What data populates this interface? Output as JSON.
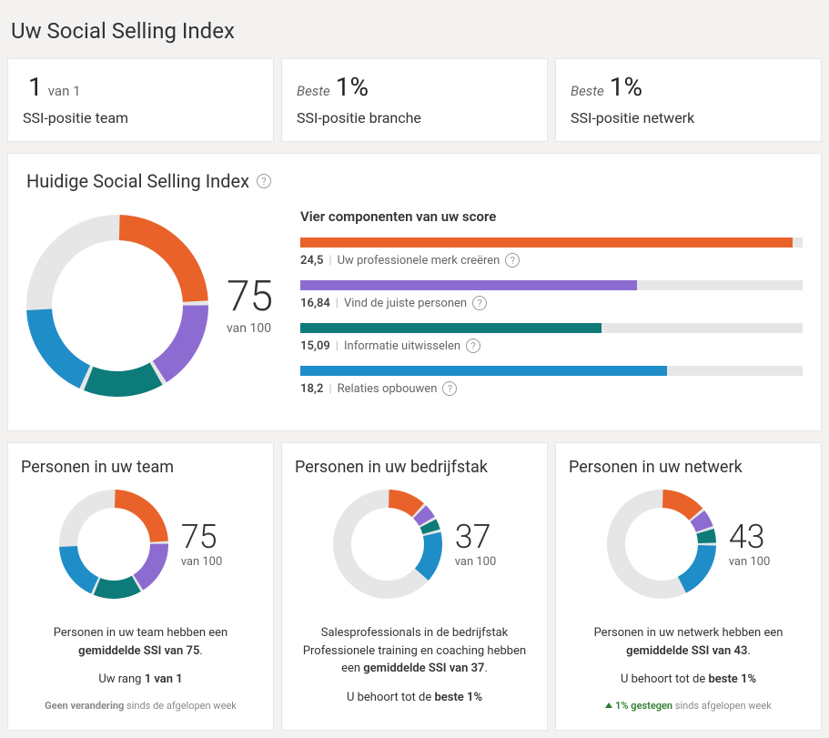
{
  "colors": {
    "orange": "#e9622a",
    "purple": "#8d6cd1",
    "teal": "#0e7b7b",
    "blue": "#1f8dc7",
    "track": "#e6e6e6",
    "bg": "#f3f2f0",
    "border": "#e6e6e6",
    "text": "#333333",
    "muted": "#888888"
  },
  "page": {
    "title": "Uw Social Selling Index"
  },
  "ranks": [
    {
      "prefix": "",
      "value": "1",
      "suffix": "van 1",
      "label": "SSI-positie team"
    },
    {
      "prefix": "Beste",
      "value": "1%",
      "suffix": "",
      "label": "SSI-positie branche"
    },
    {
      "prefix": "Beste",
      "value": "1%",
      "suffix": "",
      "label": "SSI-positie netwerk"
    }
  ],
  "main": {
    "title": "Huidige Social Selling Index",
    "score": "75",
    "score_sub": "van 100",
    "donut": {
      "size": 200,
      "thickness": 28,
      "gap_deg": 3,
      "segments": [
        {
          "color": "#e9622a",
          "pct": 24.5
        },
        {
          "color": "#8d6cd1",
          "pct": 16.84
        },
        {
          "color": "#0e7b7b",
          "pct": 15.09
        },
        {
          "color": "#1f8dc7",
          "pct": 18.2
        }
      ]
    },
    "components_title": "Vier componenten van uw score",
    "components": [
      {
        "value": "24,5",
        "label": "Uw professionele merk creëren",
        "pct": 98,
        "color": "#e9622a"
      },
      {
        "value": "16,84",
        "label": "Vind de juiste personen",
        "pct": 67,
        "color": "#8d6cd1"
      },
      {
        "value": "15,09",
        "label": "Informatie uitwisselen",
        "pct": 60,
        "color": "#0e7b7b"
      },
      {
        "value": "18,2",
        "label": "Relaties opbouwen",
        "pct": 73,
        "color": "#1f8dc7"
      }
    ]
  },
  "bottom": [
    {
      "title": "Personen in uw team",
      "score": "75",
      "score_sub": "van 100",
      "donut": {
        "size": 120,
        "thickness": 20,
        "gap_deg": 3,
        "segments": [
          {
            "color": "#e9622a",
            "pct": 24.5
          },
          {
            "color": "#8d6cd1",
            "pct": 16.84
          },
          {
            "color": "#0e7b7b",
            "pct": 15.09
          },
          {
            "color": "#1f8dc7",
            "pct": 18.2
          }
        ]
      },
      "line1_pre": "Personen in uw team hebben een ",
      "line1_bold": "gemiddelde SSI van 75",
      "line1_post": ".",
      "line2_pre": "Uw rang ",
      "line2_bold": "1 van 1",
      "line2_post": "",
      "footer_trend": "",
      "footer_bold": "Geen verandering",
      "footer_rest": " sinds de afgelopen week"
    },
    {
      "title": "Personen in uw bedrijfstak",
      "score": "37",
      "score_sub": "van 100",
      "donut": {
        "size": 120,
        "thickness": 20,
        "gap_deg": 3,
        "segments": [
          {
            "color": "#e9622a",
            "pct": 12
          },
          {
            "color": "#8d6cd1",
            "pct": 5
          },
          {
            "color": "#0e7b7b",
            "pct": 4
          },
          {
            "color": "#1f8dc7",
            "pct": 16
          }
        ]
      },
      "line1_pre": "Salesprofessionals in de bedrijfstak Professionele training en coaching hebben een ",
      "line1_bold": "gemiddelde SSI van 37",
      "line1_post": ".",
      "line2_pre": "U behoort tot de ",
      "line2_bold": "beste 1%",
      "line2_post": "",
      "footer_trend": "",
      "footer_bold": "",
      "footer_rest": ""
    },
    {
      "title": "Personen in uw netwerk",
      "score": "43",
      "score_sub": "van 100",
      "donut": {
        "size": 120,
        "thickness": 20,
        "gap_deg": 3,
        "segments": [
          {
            "color": "#e9622a",
            "pct": 14
          },
          {
            "color": "#8d6cd1",
            "pct": 6
          },
          {
            "color": "#0e7b7b",
            "pct": 5
          },
          {
            "color": "#1f8dc7",
            "pct": 18
          }
        ]
      },
      "line1_pre": "Personen in uw netwerk hebben een ",
      "line1_bold": "gemiddelde SSI van 43",
      "line1_post": ".",
      "line2_pre": "U behoort tot de ",
      "line2_bold": "beste 1%",
      "line2_post": "",
      "footer_trend": "up",
      "footer_bold": "1% gestegen",
      "footer_rest": " sinds afgelopen week"
    }
  ]
}
